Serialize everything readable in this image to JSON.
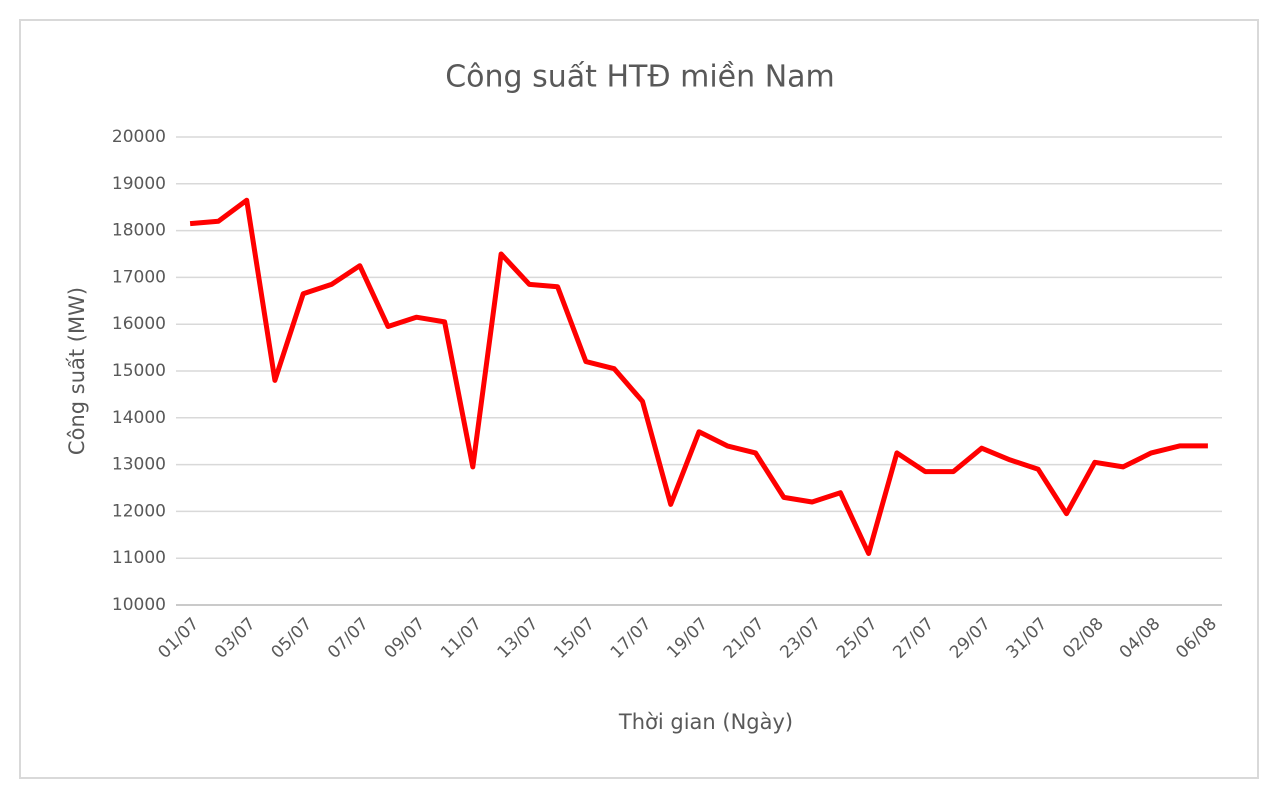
{
  "chart_data": {
    "type": "line",
    "title": "Công suất HTĐ miền Nam",
    "x_label": "Thời gian (Ngày)",
    "y_label": "Công suất (MW)",
    "categories": [
      "01/07",
      null,
      "03/07",
      null,
      "05/07",
      null,
      "07/07",
      null,
      "09/07",
      null,
      "11/07",
      null,
      "13/07",
      null,
      "15/07",
      null,
      "17/07",
      null,
      "19/07",
      null,
      "21/07",
      null,
      "23/07",
      null,
      "25/07",
      null,
      "27/07",
      null,
      "29/07",
      null,
      "31/07",
      null,
      "02/08",
      null,
      "04/08",
      null,
      "06/08"
    ],
    "series": [
      {
        "name": "Công suất",
        "color": "#ff0000",
        "values": [
          18150,
          18200,
          18650,
          14800,
          16650,
          16850,
          17250,
          15950,
          16150,
          16050,
          12950,
          17500,
          16850,
          16800,
          15200,
          15050,
          14350,
          12150,
          13700,
          13400,
          13250,
          12300,
          12200,
          12400,
          11100,
          13250,
          12850,
          12850,
          13350,
          13100,
          12900,
          11950,
          13050,
          12950,
          13250,
          13400,
          13400
        ]
      }
    ],
    "ylim": [
      10000,
      20000
    ],
    "yticks": [
      10000,
      11000,
      12000,
      13000,
      14000,
      15000,
      16000,
      17000,
      18000,
      19000,
      20000
    ],
    "grid": true
  }
}
